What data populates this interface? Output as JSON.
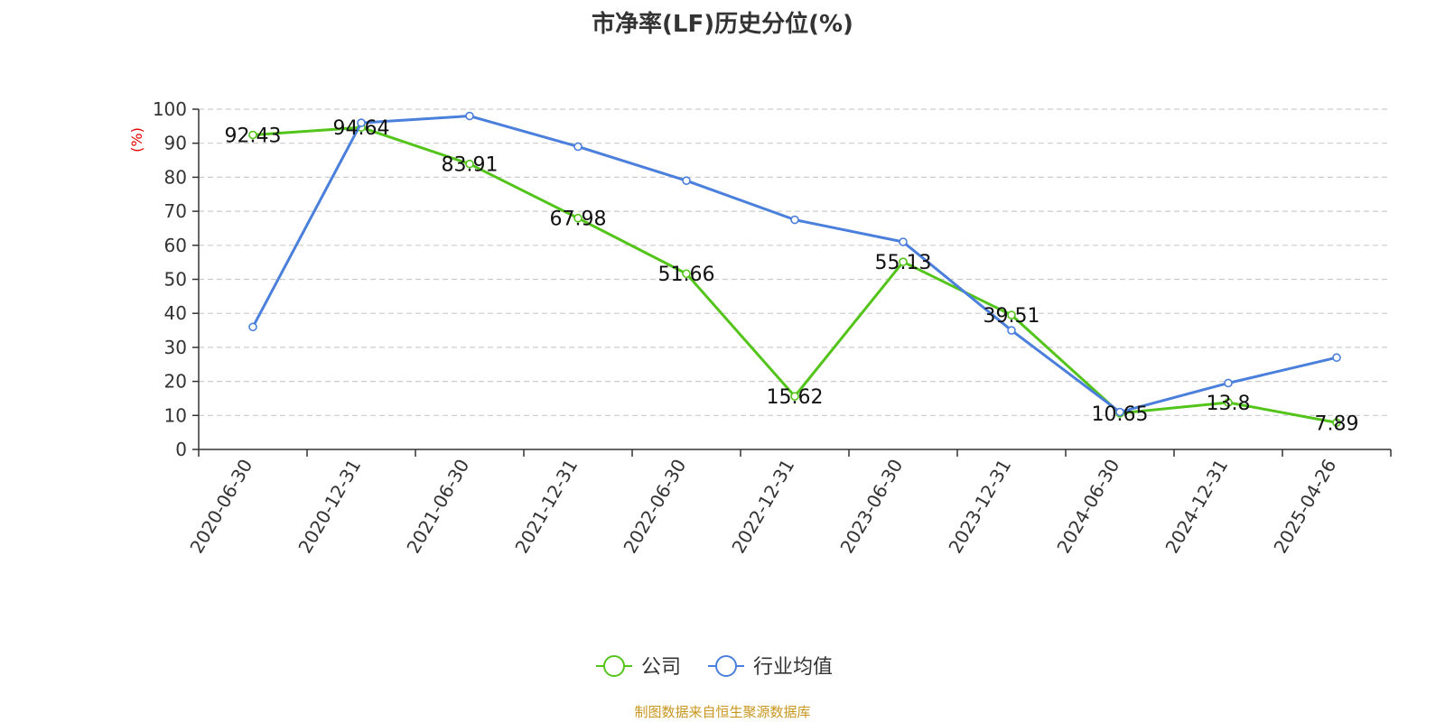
{
  "chart_data": {
    "type": "line",
    "title": "市净率(LF)历史分位(%)",
    "ylabel": "(%)",
    "ylim": [
      0,
      100
    ],
    "yticks": [
      0,
      10,
      20,
      30,
      40,
      50,
      60,
      70,
      80,
      90,
      100
    ],
    "grid": true,
    "legend_position": "bottom-center",
    "categories": [
      "2020-06-30",
      "2020-12-31",
      "2021-06-30",
      "2021-12-31",
      "2022-06-30",
      "2022-12-31",
      "2023-06-30",
      "2023-12-31",
      "2024-06-30",
      "2024-12-31",
      "2025-04-26"
    ],
    "series": [
      {
        "name": "公司",
        "color": "#52c41a",
        "values": [
          92.43,
          94.64,
          83.91,
          67.98,
          51.66,
          15.62,
          55.13,
          39.51,
          10.65,
          13.8,
          7.89
        ],
        "labels": [
          "92.43",
          "94.64",
          "83.91",
          "67.98",
          "51.66",
          "15.62",
          "55.13",
          "39.51",
          "10.65",
          "13.8",
          "7.89"
        ]
      },
      {
        "name": "行业均值",
        "color": "#4a7fdc",
        "values": [
          36,
          96,
          98,
          89,
          79,
          67.5,
          61,
          35,
          11,
          19.5,
          27
        ]
      }
    ],
    "unit_color": "#e60000"
  },
  "footer": {
    "source": "制图数据来自恒生聚源数据库"
  }
}
